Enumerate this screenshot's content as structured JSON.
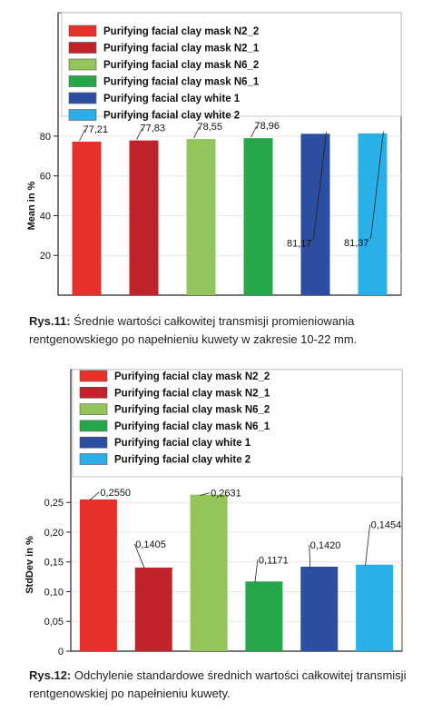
{
  "figures": [
    {
      "caption_label": "Rys.11:",
      "caption_text": " Średnie wartości całkowitej transmisji promieniowania rentgenowskiego po napełnieniu kuwety w zakresie 10-22 mm."
    },
    {
      "caption_label": "Rys.12:",
      "caption_text": " Odchylenie standardowe średnich wartości całkowitej transmisji rentgenowskiej po napełnieniu kuwety."
    }
  ],
  "chart_data": [
    {
      "type": "bar",
      "title": "",
      "xlabel": "",
      "ylabel": "Mean in %",
      "ylim": [
        0,
        90
      ],
      "yticks": [
        20,
        40,
        60,
        80
      ],
      "ytick_labels": [
        "20",
        "40",
        "60",
        "80"
      ],
      "legend_position": "top",
      "grid": false,
      "series": [
        {
          "name": "Purifying facial clay mask N2_2",
          "value": 77.21,
          "label": "77,21",
          "color": "#e8312a"
        },
        {
          "name": "Purifying facial clay mask N2_1",
          "value": 77.83,
          "label": "77,83",
          "color": "#c0232a"
        },
        {
          "name": "Purifying facial clay mask N6_2",
          "value": 78.55,
          "label": "78,55",
          "color": "#93c55a"
        },
        {
          "name": "Purifying facial clay mask N6_1",
          "value": 78.96,
          "label": "78,96",
          "color": "#25a84a"
        },
        {
          "name": "Purifying facial clay white 1",
          "value": 81.17,
          "label": "81,17",
          "color": "#2c4ea1"
        },
        {
          "name": "Purifying facial clay white 2",
          "value": 81.37,
          "label": "81,37",
          "color": "#2ab0e8"
        }
      ]
    },
    {
      "type": "bar",
      "title": "",
      "xlabel": "",
      "ylabel": "StdDev in %",
      "ylim": [
        0,
        0.29
      ],
      "yticks": [
        0,
        0.05,
        0.1,
        0.15,
        0.2,
        0.25
      ],
      "ytick_labels": [
        "0",
        "0,05",
        "0,10",
        "0,15",
        "0,20",
        "0,25"
      ],
      "legend_position": "top",
      "grid": false,
      "series": [
        {
          "name": "Purifying facial clay mask N2_2",
          "value": 0.255,
          "label": "0,2550",
          "color": "#e8312a"
        },
        {
          "name": "Purifying facial clay mask N2_1",
          "value": 0.1405,
          "label": "0,1405",
          "color": "#c0232a"
        },
        {
          "name": "Purifying facial clay mask N6_2",
          "value": 0.2631,
          "label": "0,2631",
          "color": "#93c55a"
        },
        {
          "name": "Purifying facial clay mask N6_1",
          "value": 0.1171,
          "label": "0,1171",
          "color": "#25a84a"
        },
        {
          "name": "Purifying facial clay white 1",
          "value": 0.142,
          "label": "0,1420",
          "color": "#2c4ea1"
        },
        {
          "name": "Purifying facial clay white 2",
          "value": 0.1454,
          "label": "0,1454",
          "color": "#2ab0e8"
        }
      ]
    }
  ]
}
